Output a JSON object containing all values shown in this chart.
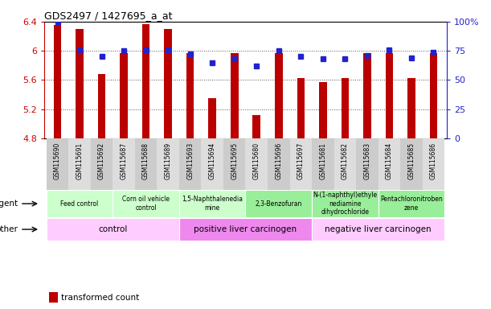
{
  "title": "GDS2497 / 1427695_a_at",
  "samples": [
    "GSM115690",
    "GSM115691",
    "GSM115692",
    "GSM115687",
    "GSM115688",
    "GSM115689",
    "GSM115693",
    "GSM115694",
    "GSM115695",
    "GSM115680",
    "GSM115696",
    "GSM115697",
    "GSM115681",
    "GSM115682",
    "GSM115683",
    "GSM115684",
    "GSM115685",
    "GSM115686"
  ],
  "bar_values": [
    6.35,
    6.3,
    5.68,
    5.97,
    6.37,
    6.3,
    5.97,
    5.35,
    5.97,
    5.12,
    5.97,
    5.63,
    5.57,
    5.63,
    5.97,
    5.97,
    5.63,
    5.97
  ],
  "percentile_values": [
    100,
    76,
    70,
    75,
    76,
    76,
    72,
    65,
    68,
    62,
    75,
    70,
    68,
    68,
    71,
    76,
    69,
    74
  ],
  "ymin": 4.8,
  "ymax": 6.4,
  "yticks": [
    4.8,
    5.2,
    5.6,
    6.0,
    6.4
  ],
  "ytick_labels": [
    "4.8",
    "5.2",
    "5.6",
    "6",
    "6.4"
  ],
  "right_yticks": [
    0,
    25,
    50,
    75,
    100
  ],
  "right_ytick_labels": [
    "0",
    "25",
    "50",
    "75",
    "100%"
  ],
  "bar_color": "#bb0000",
  "percentile_color": "#2222cc",
  "agent_groups": [
    {
      "label": "Feed control",
      "start": 0,
      "end": 3,
      "color": "#ccffcc"
    },
    {
      "label": "Corn oil vehicle\ncontrol",
      "start": 3,
      "end": 6,
      "color": "#ccffcc"
    },
    {
      "label": "1,5-Naphthalenedia\nmine",
      "start": 6,
      "end": 9,
      "color": "#ccffcc"
    },
    {
      "label": "2,3-Benzofuran",
      "start": 9,
      "end": 12,
      "color": "#99ee99"
    },
    {
      "label": "N-(1-naphthyl)ethyle\nnediamine\ndihydrochloride",
      "start": 12,
      "end": 15,
      "color": "#99ee99"
    },
    {
      "label": "Pentachloronitroben\nzene",
      "start": 15,
      "end": 18,
      "color": "#99ee99"
    }
  ],
  "other_groups": [
    {
      "label": "control",
      "start": 0,
      "end": 6,
      "color": "#ffccff"
    },
    {
      "label": "positive liver carcinogen",
      "start": 6,
      "end": 12,
      "color": "#ee88ee"
    },
    {
      "label": "negative liver carcinogen",
      "start": 12,
      "end": 18,
      "color": "#ffccff"
    }
  ],
  "grid_color": "#555555",
  "background_color": "#ffffff",
  "left_label_color": "#cc0000",
  "right_label_color": "#2222cc",
  "plot_bg": "#ffffff"
}
